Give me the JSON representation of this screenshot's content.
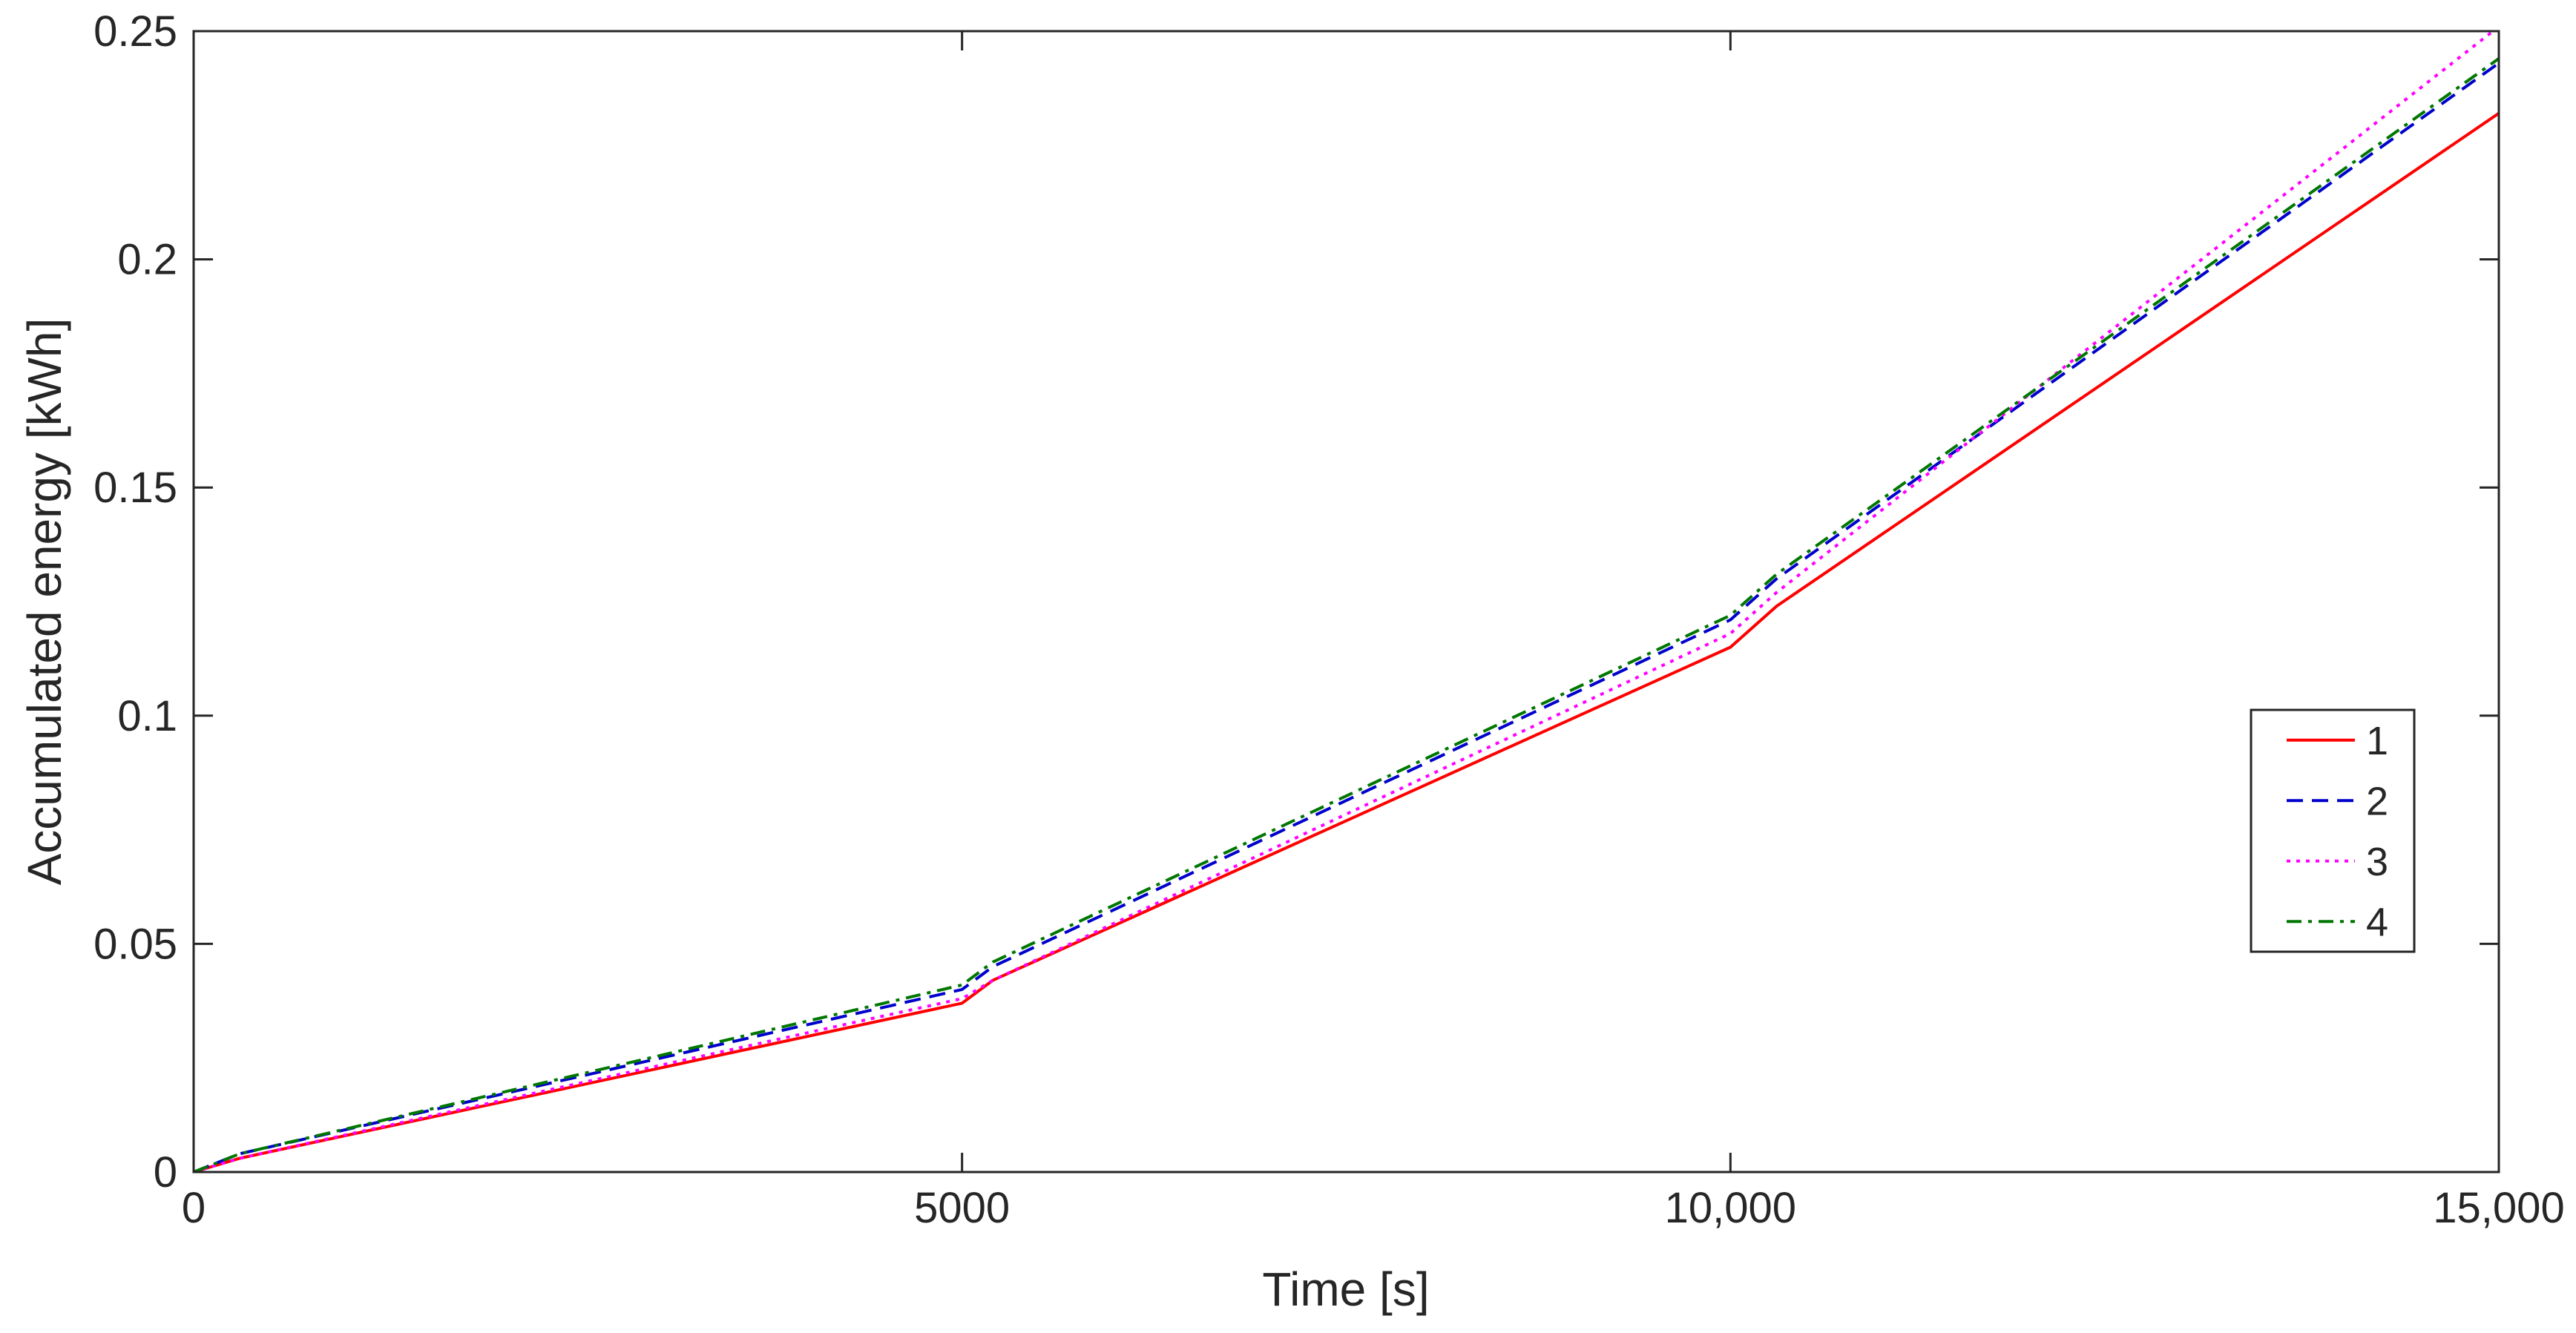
{
  "chart_data": {
    "type": "line",
    "title": "",
    "xlabel": "Time [s]",
    "ylabel": "Accumulated energy [kWh]",
    "xlim": [
      0,
      15000
    ],
    "ylim": [
      0,
      0.25
    ],
    "x_ticks": [
      0,
      5000,
      10000,
      15000
    ],
    "x_tick_labels": [
      "0",
      "5000",
      "10,000",
      "15,000"
    ],
    "y_ticks": [
      0,
      0.05,
      0.1,
      0.15,
      0.2,
      0.25
    ],
    "y_tick_labels": [
      "0",
      "0.05",
      "0.1",
      "0.15",
      "0.2",
      "0.25"
    ],
    "grid": false,
    "legend_position": "right",
    "series": [
      {
        "name": "1",
        "color": "#ff0000",
        "dash": "solid",
        "points": [
          [
            0,
            0
          ],
          [
            300,
            0.003
          ],
          [
            5000,
            0.037
          ],
          [
            5200,
            0.042
          ],
          [
            10000,
            0.115
          ],
          [
            10300,
            0.124
          ],
          [
            15000,
            0.232
          ]
        ]
      },
      {
        "name": "2",
        "color": "#0000cc",
        "dash": "dashed",
        "points": [
          [
            0,
            0
          ],
          [
            300,
            0.004
          ],
          [
            5000,
            0.04
          ],
          [
            5200,
            0.045
          ],
          [
            10000,
            0.121
          ],
          [
            10300,
            0.13
          ],
          [
            15000,
            0.243
          ]
        ]
      },
      {
        "name": "3",
        "color": "#ff00ff",
        "dash": "dotted",
        "points": [
          [
            0,
            0
          ],
          [
            300,
            0.003
          ],
          [
            5000,
            0.038
          ],
          [
            5200,
            0.042
          ],
          [
            10000,
            0.118
          ],
          [
            10300,
            0.127
          ],
          [
            15000,
            0.251
          ]
        ]
      },
      {
        "name": "4",
        "color": "#007700",
        "dash": "dashdot",
        "points": [
          [
            0,
            0
          ],
          [
            300,
            0.004
          ],
          [
            5000,
            0.041
          ],
          [
            5200,
            0.046
          ],
          [
            10000,
            0.122
          ],
          [
            10300,
            0.131
          ],
          [
            15000,
            0.244
          ]
        ]
      }
    ]
  }
}
